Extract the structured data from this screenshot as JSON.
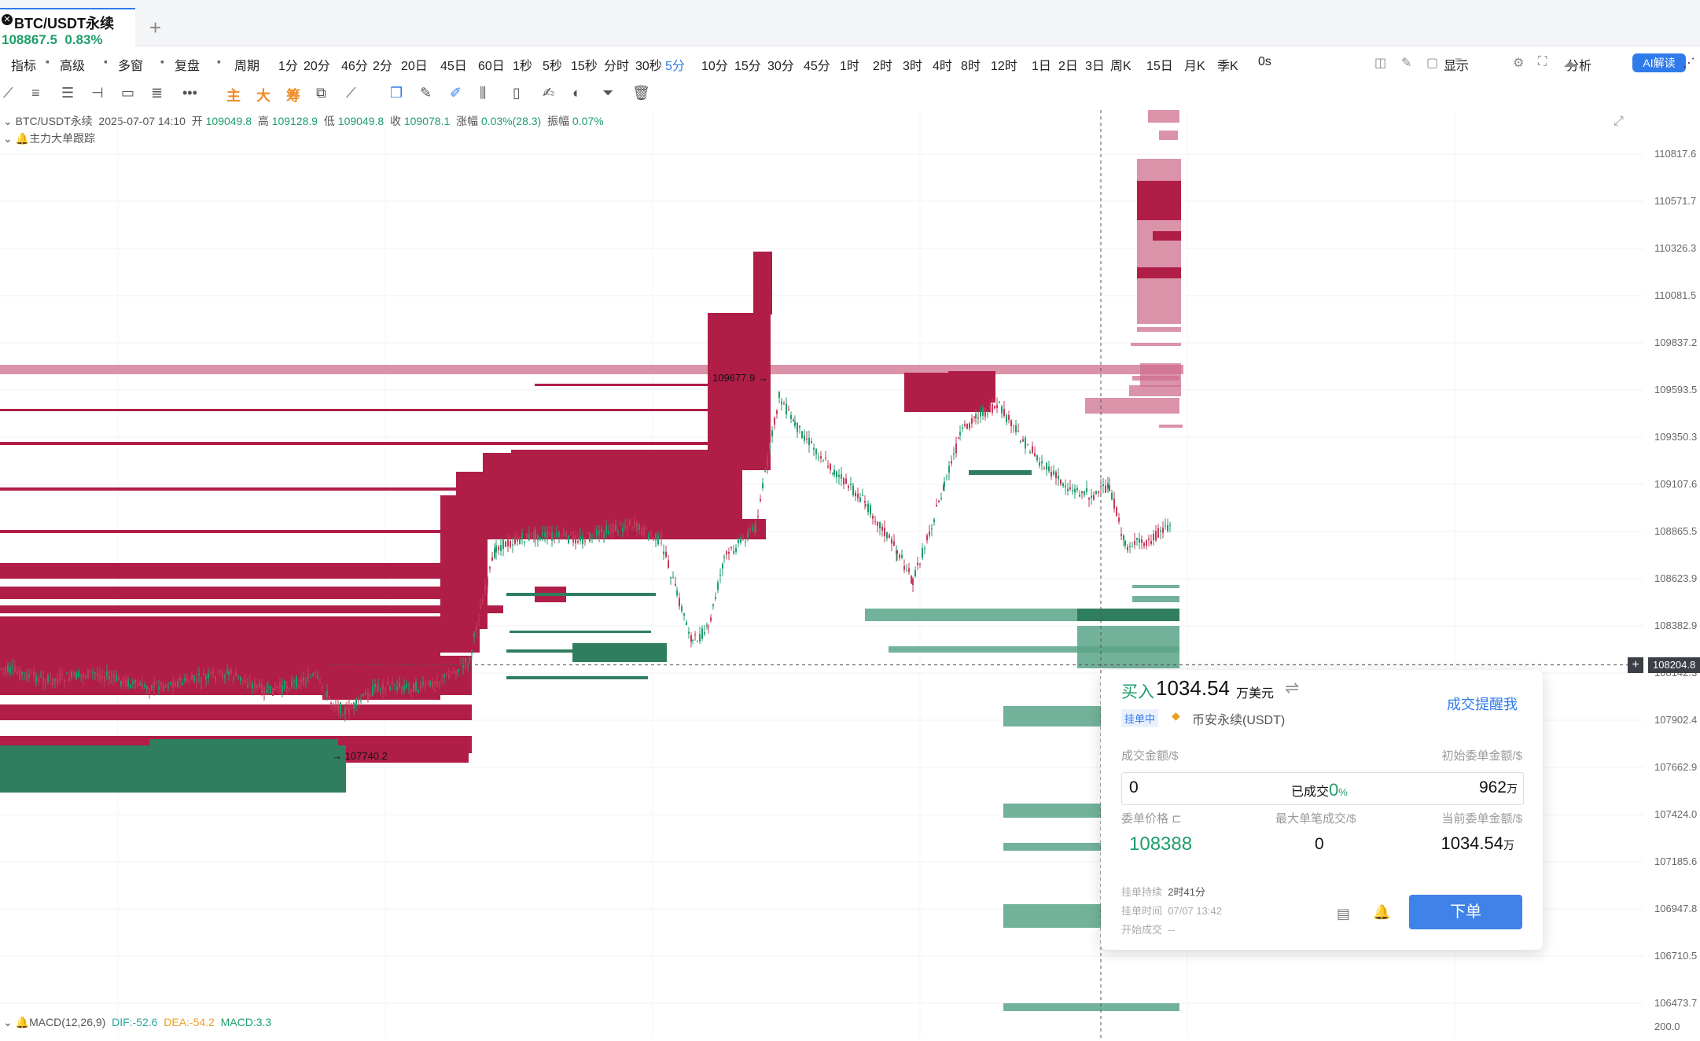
{
  "tab": {
    "title": "BTC/USDT永续",
    "price": "108867.5",
    "change": "0.83%",
    "add": "+"
  },
  "toolbar": {
    "items": [
      "指标",
      "高级",
      "多窗",
      "复盘",
      "周期",
      "1分",
      "20分",
      "46分",
      "2分",
      "20日",
      "45日",
      "60日",
      "1秒",
      "5秒",
      "15秒",
      "分时",
      "30秒",
      "5分",
      "10分",
      "15分",
      "30分",
      "45分",
      "1时",
      "2时",
      "3时",
      "4时",
      "8时",
      "12时",
      "1日",
      "2日",
      "3日",
      "周K",
      "15日",
      "月K",
      "季K",
      "0s",
      "显示",
      "分析"
    ],
    "active": "5分",
    "ai": "AI解读"
  },
  "drawing_tools": {
    "main": "主",
    "big": "大",
    "chips": "筹"
  },
  "info": {
    "symbol": "BTC/USDT永续",
    "datetime": "2025-07-07 14:10",
    "open_label": "开",
    "open": "109049.8",
    "high_label": "高",
    "high": "109128.9",
    "low_label": "低",
    "low": "109049.8",
    "close_label": "收",
    "close": "109078.1",
    "chg_label": "涨幅",
    "chg": "0.03%(28.3)",
    "amp_label": "振幅",
    "amp": "0.07%",
    "tracker": "主力大单跟踪"
  },
  "macd": {
    "label": "MACD(12,26,9)",
    "dif": "DIF:-52.6",
    "dea": "DEA:-54.2",
    "macd": "MACD:3.3"
  },
  "price_axis": [
    "110817.6",
    "110571.7",
    "110326.3",
    "110081.5",
    "109837.2",
    "109593.5",
    "109350.3",
    "109107.6",
    "108865.5",
    "108623.9",
    "108382.9",
    "108142.3",
    "107902.4",
    "107662.9",
    "107424.0",
    "107185.6",
    "106947.8",
    "106710.5",
    "106473.7",
    "200.0"
  ],
  "current_price_tag": "108204.8",
  "annotations": {
    "high": "109677.9",
    "low": "107740.2"
  },
  "card": {
    "buy_label": "买入",
    "amount": "1034.54",
    "amount_unit": "万美元",
    "status": "挂单中",
    "exchange": "币安永续(USDT)",
    "alert": "成交提醒我",
    "filled_label": "成交金额/$",
    "initial_label": "初始委单金额/$",
    "filled_value": "0",
    "filled_pct_label": "已成交",
    "filled_pct": "0",
    "pct_sign": "%",
    "initial_value": "962",
    "wan": "万",
    "price_label": "委单价格",
    "max_label": "最大单笔成交/$",
    "current_label": "当前委单金额/$",
    "price_value": "108388",
    "max_value": "0",
    "current_value": "1034.54",
    "duration_label": "挂单持续",
    "duration": "2时41分",
    "time_label": "挂单时间",
    "time": "07/07 13:42",
    "start_label": "开始成交",
    "start": "--",
    "order_btn": "下单"
  },
  "colors": {
    "up": "#1e9e6a",
    "down": "#c43a5a",
    "bid": "#2f7e5f",
    "ask": "#b01e48",
    "accent": "#2f7bea"
  },
  "chart_data": {
    "type": "candlestick-heatmap",
    "symbol": "BTC/USDT永续",
    "interval": "5分",
    "ylim": [
      106473.7,
      110817.6
    ],
    "marked_high": 109677.9,
    "marked_low": 107740.2,
    "last_price": 108204.8
  }
}
